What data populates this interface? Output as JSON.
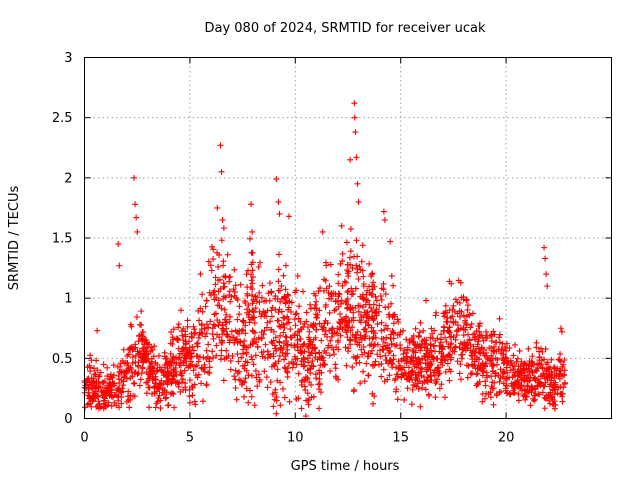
{
  "chart_data": {
    "type": "scatter",
    "title": "Day 080 of 2024, SRMTID for receiver ucak",
    "xlabel": "GPS time / hours",
    "ylabel": "SRMTID / TECUs",
    "xlim": [
      0,
      25
    ],
    "ylim": [
      0,
      3
    ],
    "x_ticks": [
      0,
      5,
      10,
      15,
      20
    ],
    "x_tick_labels": [
      "0",
      "5",
      "10",
      "15",
      "20"
    ],
    "y_ticks": [
      0,
      0.5,
      1,
      1.5,
      2,
      2.5,
      3
    ],
    "y_tick_labels": [
      "0",
      "0.5",
      "1",
      "1.5",
      "2",
      "2.5",
      "3"
    ],
    "grid": true,
    "marker": "+",
    "series": [
      {
        "name": "SRMTID",
        "color": "#ff0000",
        "envelope": {
          "x": [
            0.0,
            0.5,
            1.0,
            1.5,
            2.0,
            2.5,
            3.0,
            3.5,
            4.0,
            4.5,
            5.0,
            5.5,
            6.0,
            6.5,
            7.0,
            7.5,
            8.0,
            8.5,
            9.0,
            9.5,
            10.0,
            10.5,
            11.0,
            11.5,
            12.0,
            12.5,
            13.0,
            13.5,
            14.0,
            14.5,
            15.0,
            15.5,
            16.0,
            16.5,
            17.0,
            17.5,
            18.0,
            18.5,
            19.0,
            19.5,
            20.0,
            20.5,
            21.0,
            21.5,
            22.0,
            22.5,
            22.8
          ],
          "mean": [
            0.28,
            0.25,
            0.22,
            0.28,
            0.35,
            0.6,
            0.45,
            0.3,
            0.35,
            0.55,
            0.5,
            0.55,
            0.8,
            0.95,
            0.75,
            0.6,
            0.85,
            0.75,
            0.6,
            0.75,
            0.7,
            0.5,
            0.6,
            0.75,
            0.85,
            1.0,
            0.8,
            0.75,
            0.85,
            0.7,
            0.5,
            0.45,
            0.5,
            0.45,
            0.6,
            0.75,
            0.75,
            0.55,
            0.45,
            0.45,
            0.45,
            0.35,
            0.3,
            0.4,
            0.3,
            0.3,
            0.3
          ],
          "spread": [
            0.1,
            0.1,
            0.08,
            0.1,
            0.12,
            0.2,
            0.15,
            0.12,
            0.12,
            0.2,
            0.18,
            0.2,
            0.25,
            0.3,
            0.25,
            0.22,
            0.3,
            0.25,
            0.25,
            0.28,
            0.25,
            0.2,
            0.22,
            0.25,
            0.28,
            0.3,
            0.28,
            0.25,
            0.28,
            0.22,
            0.15,
            0.12,
            0.15,
            0.12,
            0.18,
            0.2,
            0.2,
            0.15,
            0.15,
            0.15,
            0.12,
            0.1,
            0.1,
            0.15,
            0.1,
            0.1,
            0.1
          ]
        },
        "spikes": [
          [
            0.6,
            0.73
          ],
          [
            1.6,
            1.45
          ],
          [
            1.65,
            1.27
          ],
          [
            2.35,
            2.0
          ],
          [
            2.4,
            1.78
          ],
          [
            2.45,
            1.67
          ],
          [
            2.5,
            1.55
          ],
          [
            5.5,
            1.2
          ],
          [
            6.3,
            1.75
          ],
          [
            6.45,
            2.27
          ],
          [
            6.5,
            2.05
          ],
          [
            6.55,
            1.65
          ],
          [
            7.9,
            1.78
          ],
          [
            7.95,
            1.55
          ],
          [
            9.1,
            1.99
          ],
          [
            9.2,
            1.8
          ],
          [
            9.25,
            1.7
          ],
          [
            9.7,
            1.68
          ],
          [
            9.1,
            0.04
          ],
          [
            10.5,
            0.02
          ],
          [
            11.3,
            1.55
          ],
          [
            12.2,
            1.6
          ],
          [
            12.6,
            2.15
          ],
          [
            12.8,
            2.62
          ],
          [
            12.82,
            2.5
          ],
          [
            12.85,
            2.38
          ],
          [
            12.9,
            2.17
          ],
          [
            12.95,
            1.95
          ],
          [
            13.0,
            1.8
          ],
          [
            14.2,
            1.72
          ],
          [
            14.25,
            1.65
          ],
          [
            14.5,
            1.47
          ],
          [
            16.2,
            0.98
          ],
          [
            17.4,
            1.12
          ],
          [
            21.8,
            1.42
          ],
          [
            21.85,
            1.33
          ],
          [
            21.9,
            1.2
          ],
          [
            21.95,
            1.1
          ],
          [
            22.6,
            0.75
          ],
          [
            22.65,
            0.72
          ]
        ]
      }
    ]
  }
}
